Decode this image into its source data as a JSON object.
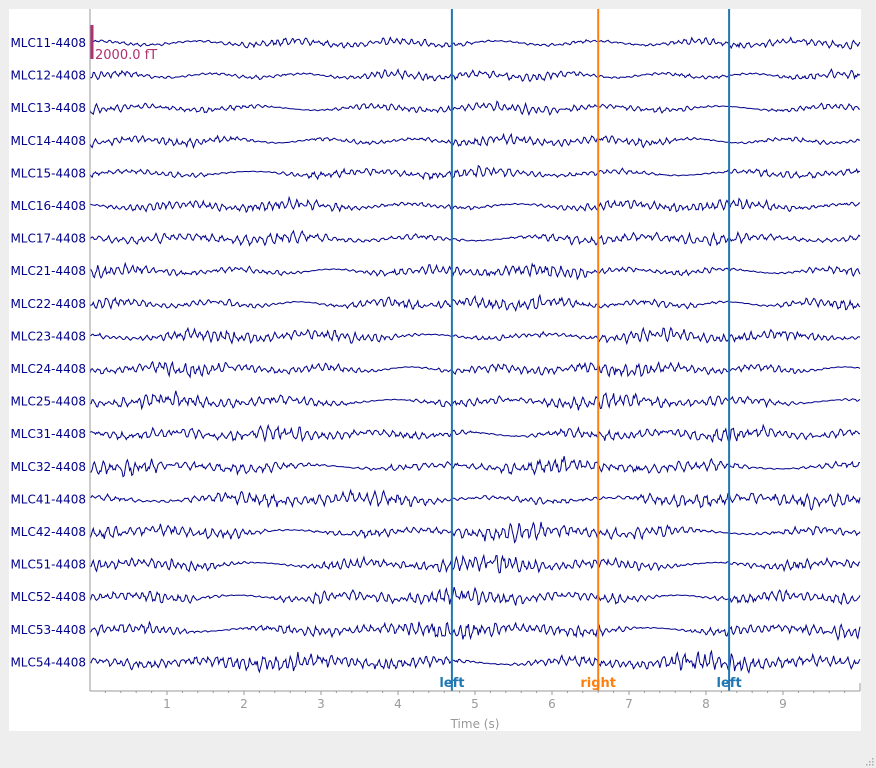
{
  "chart_data": {
    "type": "line",
    "title": "",
    "xlabel": "Time (s)",
    "ylabel": "",
    "xlim": [
      0,
      10
    ],
    "x_ticks": [
      1,
      2,
      3,
      4,
      5,
      6,
      7,
      8,
      9
    ],
    "channels": [
      "MLC11-4408",
      "MLC12-4408",
      "MLC13-4408",
      "MLC14-4408",
      "MLC15-4408",
      "MLC16-4408",
      "MLC17-4408",
      "MLC21-4408",
      "MLC22-4408",
      "MLC23-4408",
      "MLC24-4408",
      "MLC25-4408",
      "MLC31-4408",
      "MLC32-4408",
      "MLC41-4408",
      "MLC42-4408",
      "MLC51-4408",
      "MLC52-4408",
      "MLC53-4408",
      "MLC54-4408"
    ],
    "annotations": [
      {
        "time": 4.7,
        "label": "left",
        "color": "#1f77b4"
      },
      {
        "time": 6.6,
        "label": "right",
        "color": "#ff7f0e"
      },
      {
        "time": 8.3,
        "label": "left",
        "color": "#1f77b4"
      }
    ],
    "scale_bar": {
      "label": "2000.0 fT",
      "color": "#b03070"
    },
    "trace_color": "#00008b",
    "axis_color": "#999999",
    "grid": false
  }
}
